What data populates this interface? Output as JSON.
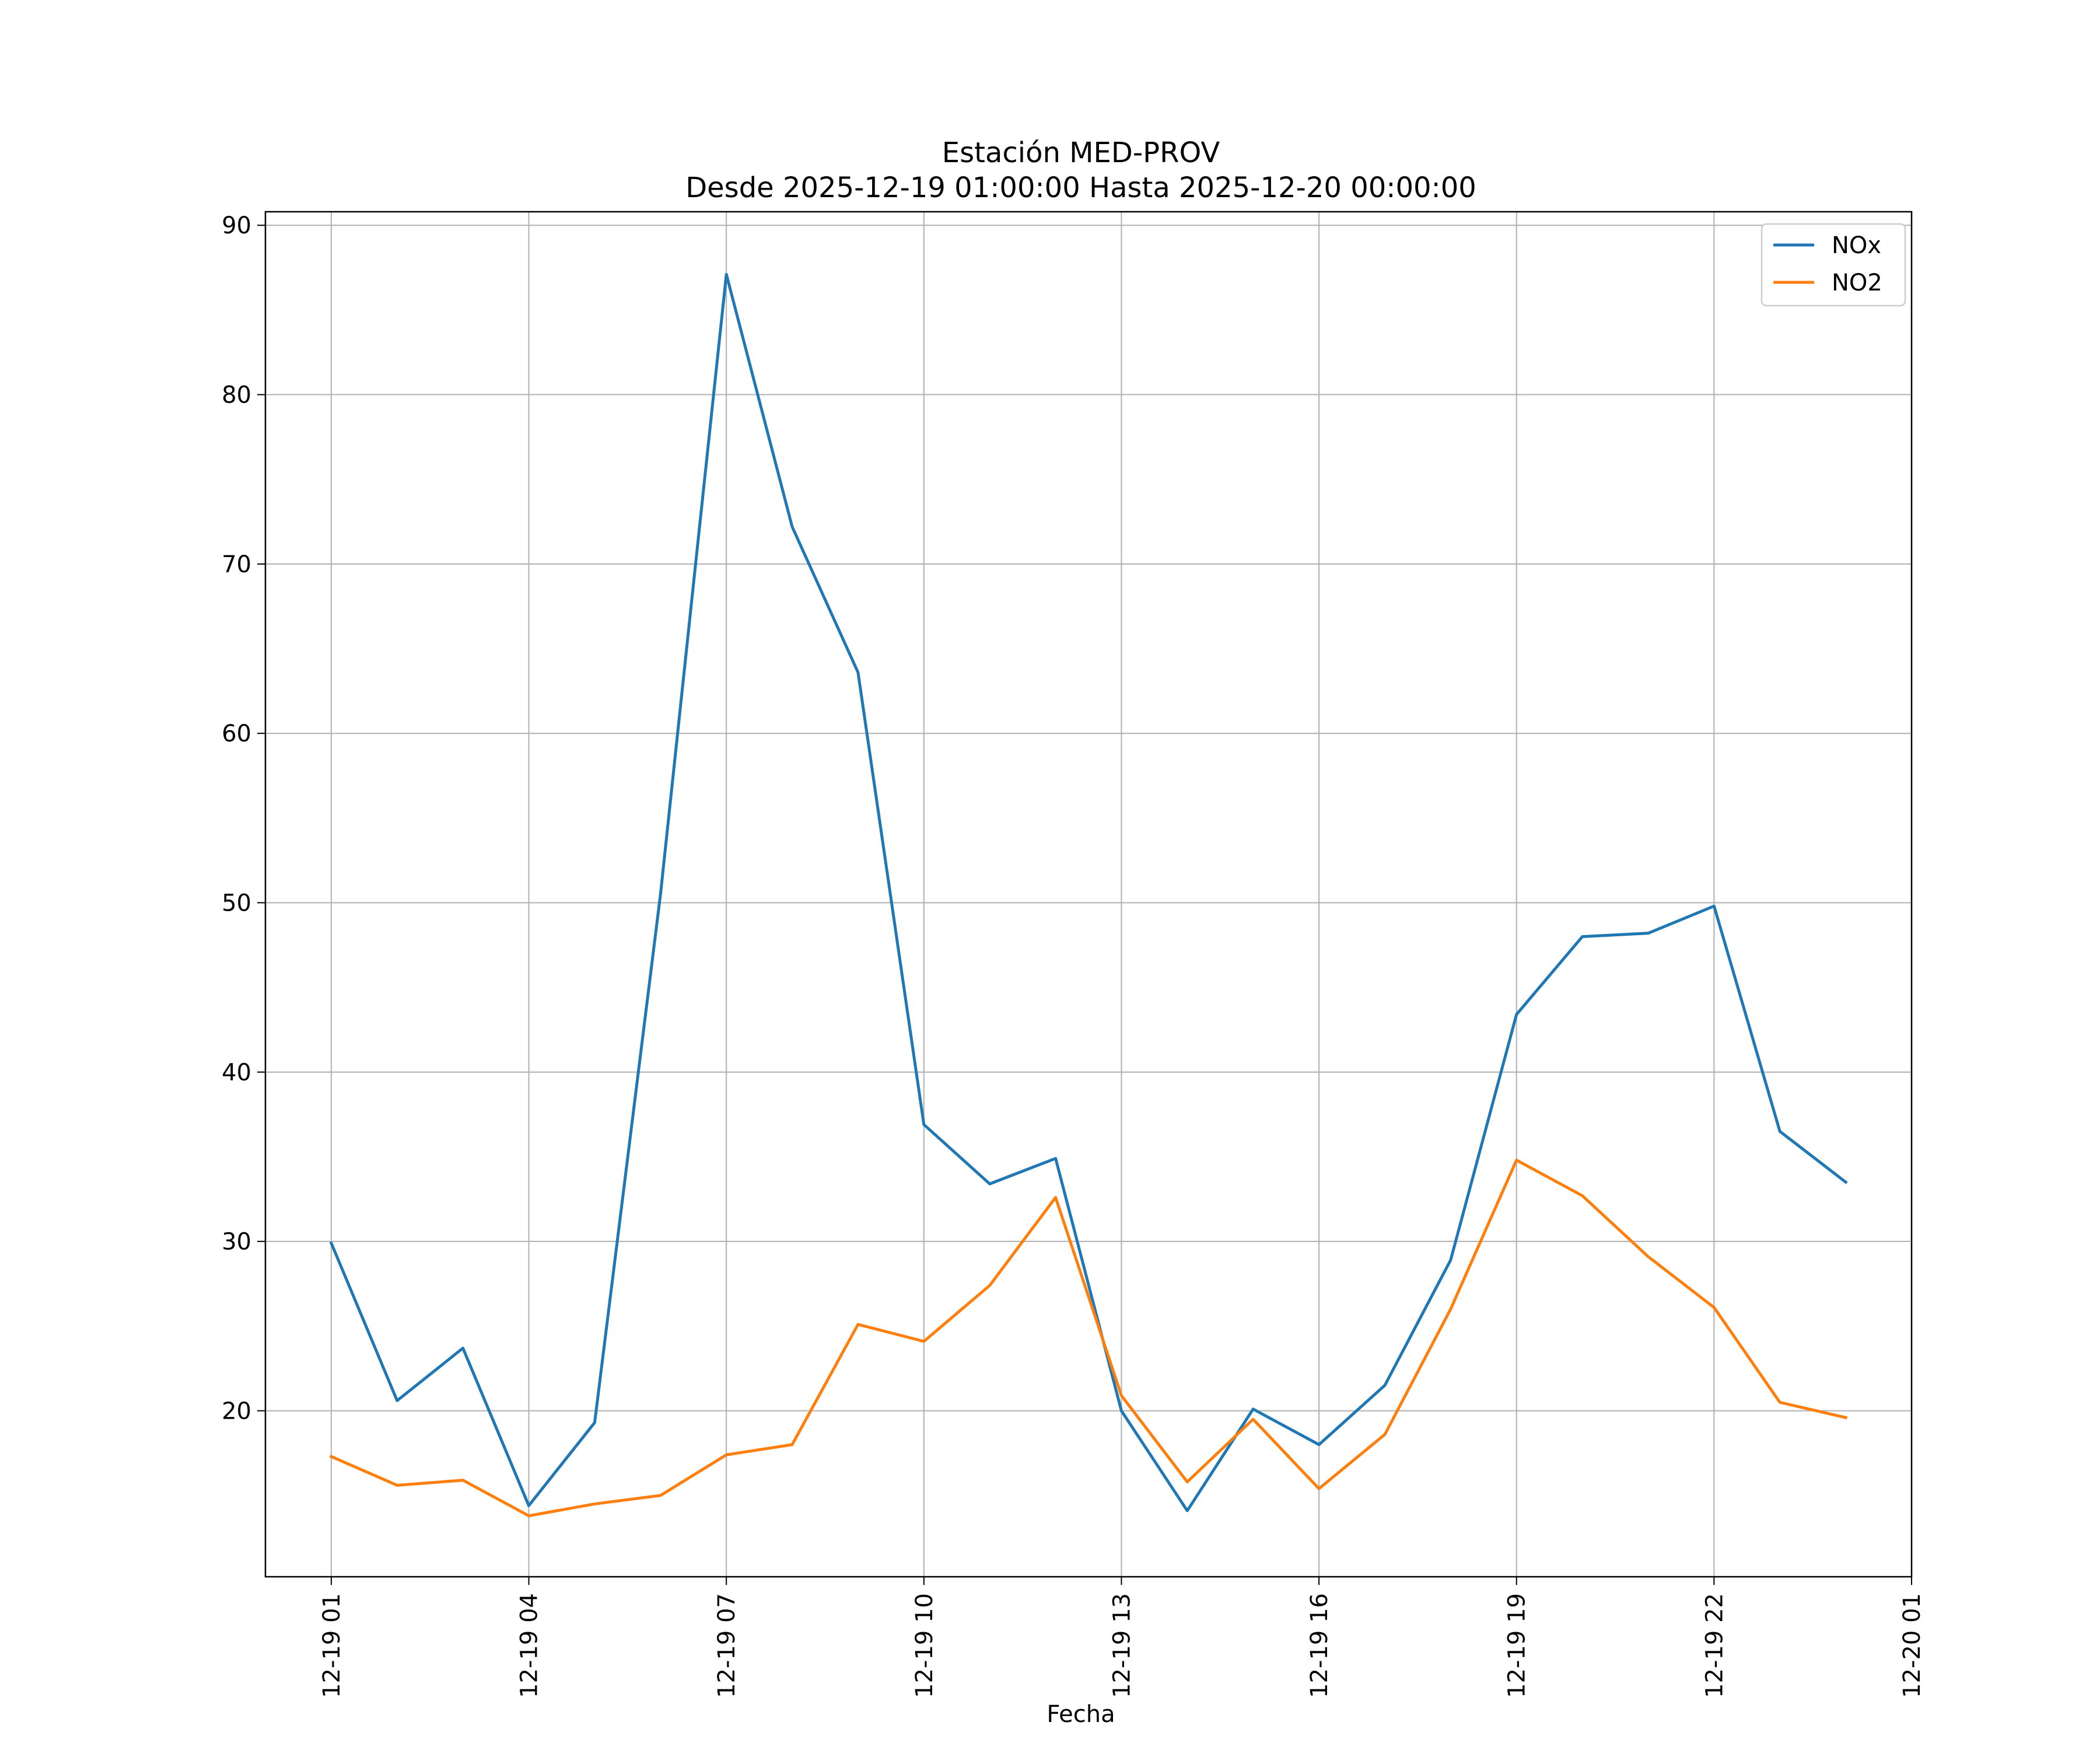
{
  "chart_data": {
    "type": "line",
    "title_line1": "Estación MED-PROV",
    "title_line2": "Desde 2025-12-19 01:00:00 Hasta 2025-12-20 00:00:00",
    "xlabel": "Fecha",
    "ylabel": "",
    "x": [
      "12-19 01",
      "12-19 02",
      "12-19 03",
      "12-19 04",
      "12-19 05",
      "12-19 06",
      "12-19 07",
      "12-19 08",
      "12-19 09",
      "12-19 10",
      "12-19 11",
      "12-19 12",
      "12-19 13",
      "12-19 14",
      "12-19 15",
      "12-19 16",
      "12-19 17",
      "12-19 18",
      "12-19 19",
      "12-19 20",
      "12-19 21",
      "12-19 22",
      "12-19 23",
      "12-20 00"
    ],
    "x_tick_labels": [
      "12-19 01",
      "12-19 04",
      "12-19 07",
      "12-19 10",
      "12-19 13",
      "12-19 16",
      "12-19 19",
      "12-19 22",
      "12-20 01"
    ],
    "x_range": [
      "12-19 00:00",
      "12-20 01:00"
    ],
    "y_ticks": [
      20,
      30,
      40,
      50,
      60,
      70,
      80,
      90
    ],
    "ylim": [
      10.2,
      90.8
    ],
    "grid": true,
    "legend_position": "top-right",
    "series": [
      {
        "name": "NOx",
        "color": "#1f77b4",
        "values": [
          29.9,
          20.6,
          23.7,
          14.4,
          19.3,
          50.5,
          87.1,
          72.2,
          63.6,
          36.9,
          33.4,
          34.9,
          20.0,
          14.1,
          20.1,
          18.0,
          21.5,
          28.9,
          43.4,
          48.0,
          48.2,
          49.8,
          36.5,
          33.5
        ]
      },
      {
        "name": "NO2",
        "color": "#ff7f0e",
        "values": [
          17.3,
          15.6,
          15.9,
          13.8,
          14.5,
          15.0,
          17.4,
          18.0,
          25.1,
          24.1,
          27.4,
          32.6,
          20.9,
          15.8,
          19.5,
          15.4,
          18.6,
          26.0,
          34.8,
          32.7,
          29.1,
          26.1,
          20.5,
          19.6
        ]
      }
    ]
  }
}
